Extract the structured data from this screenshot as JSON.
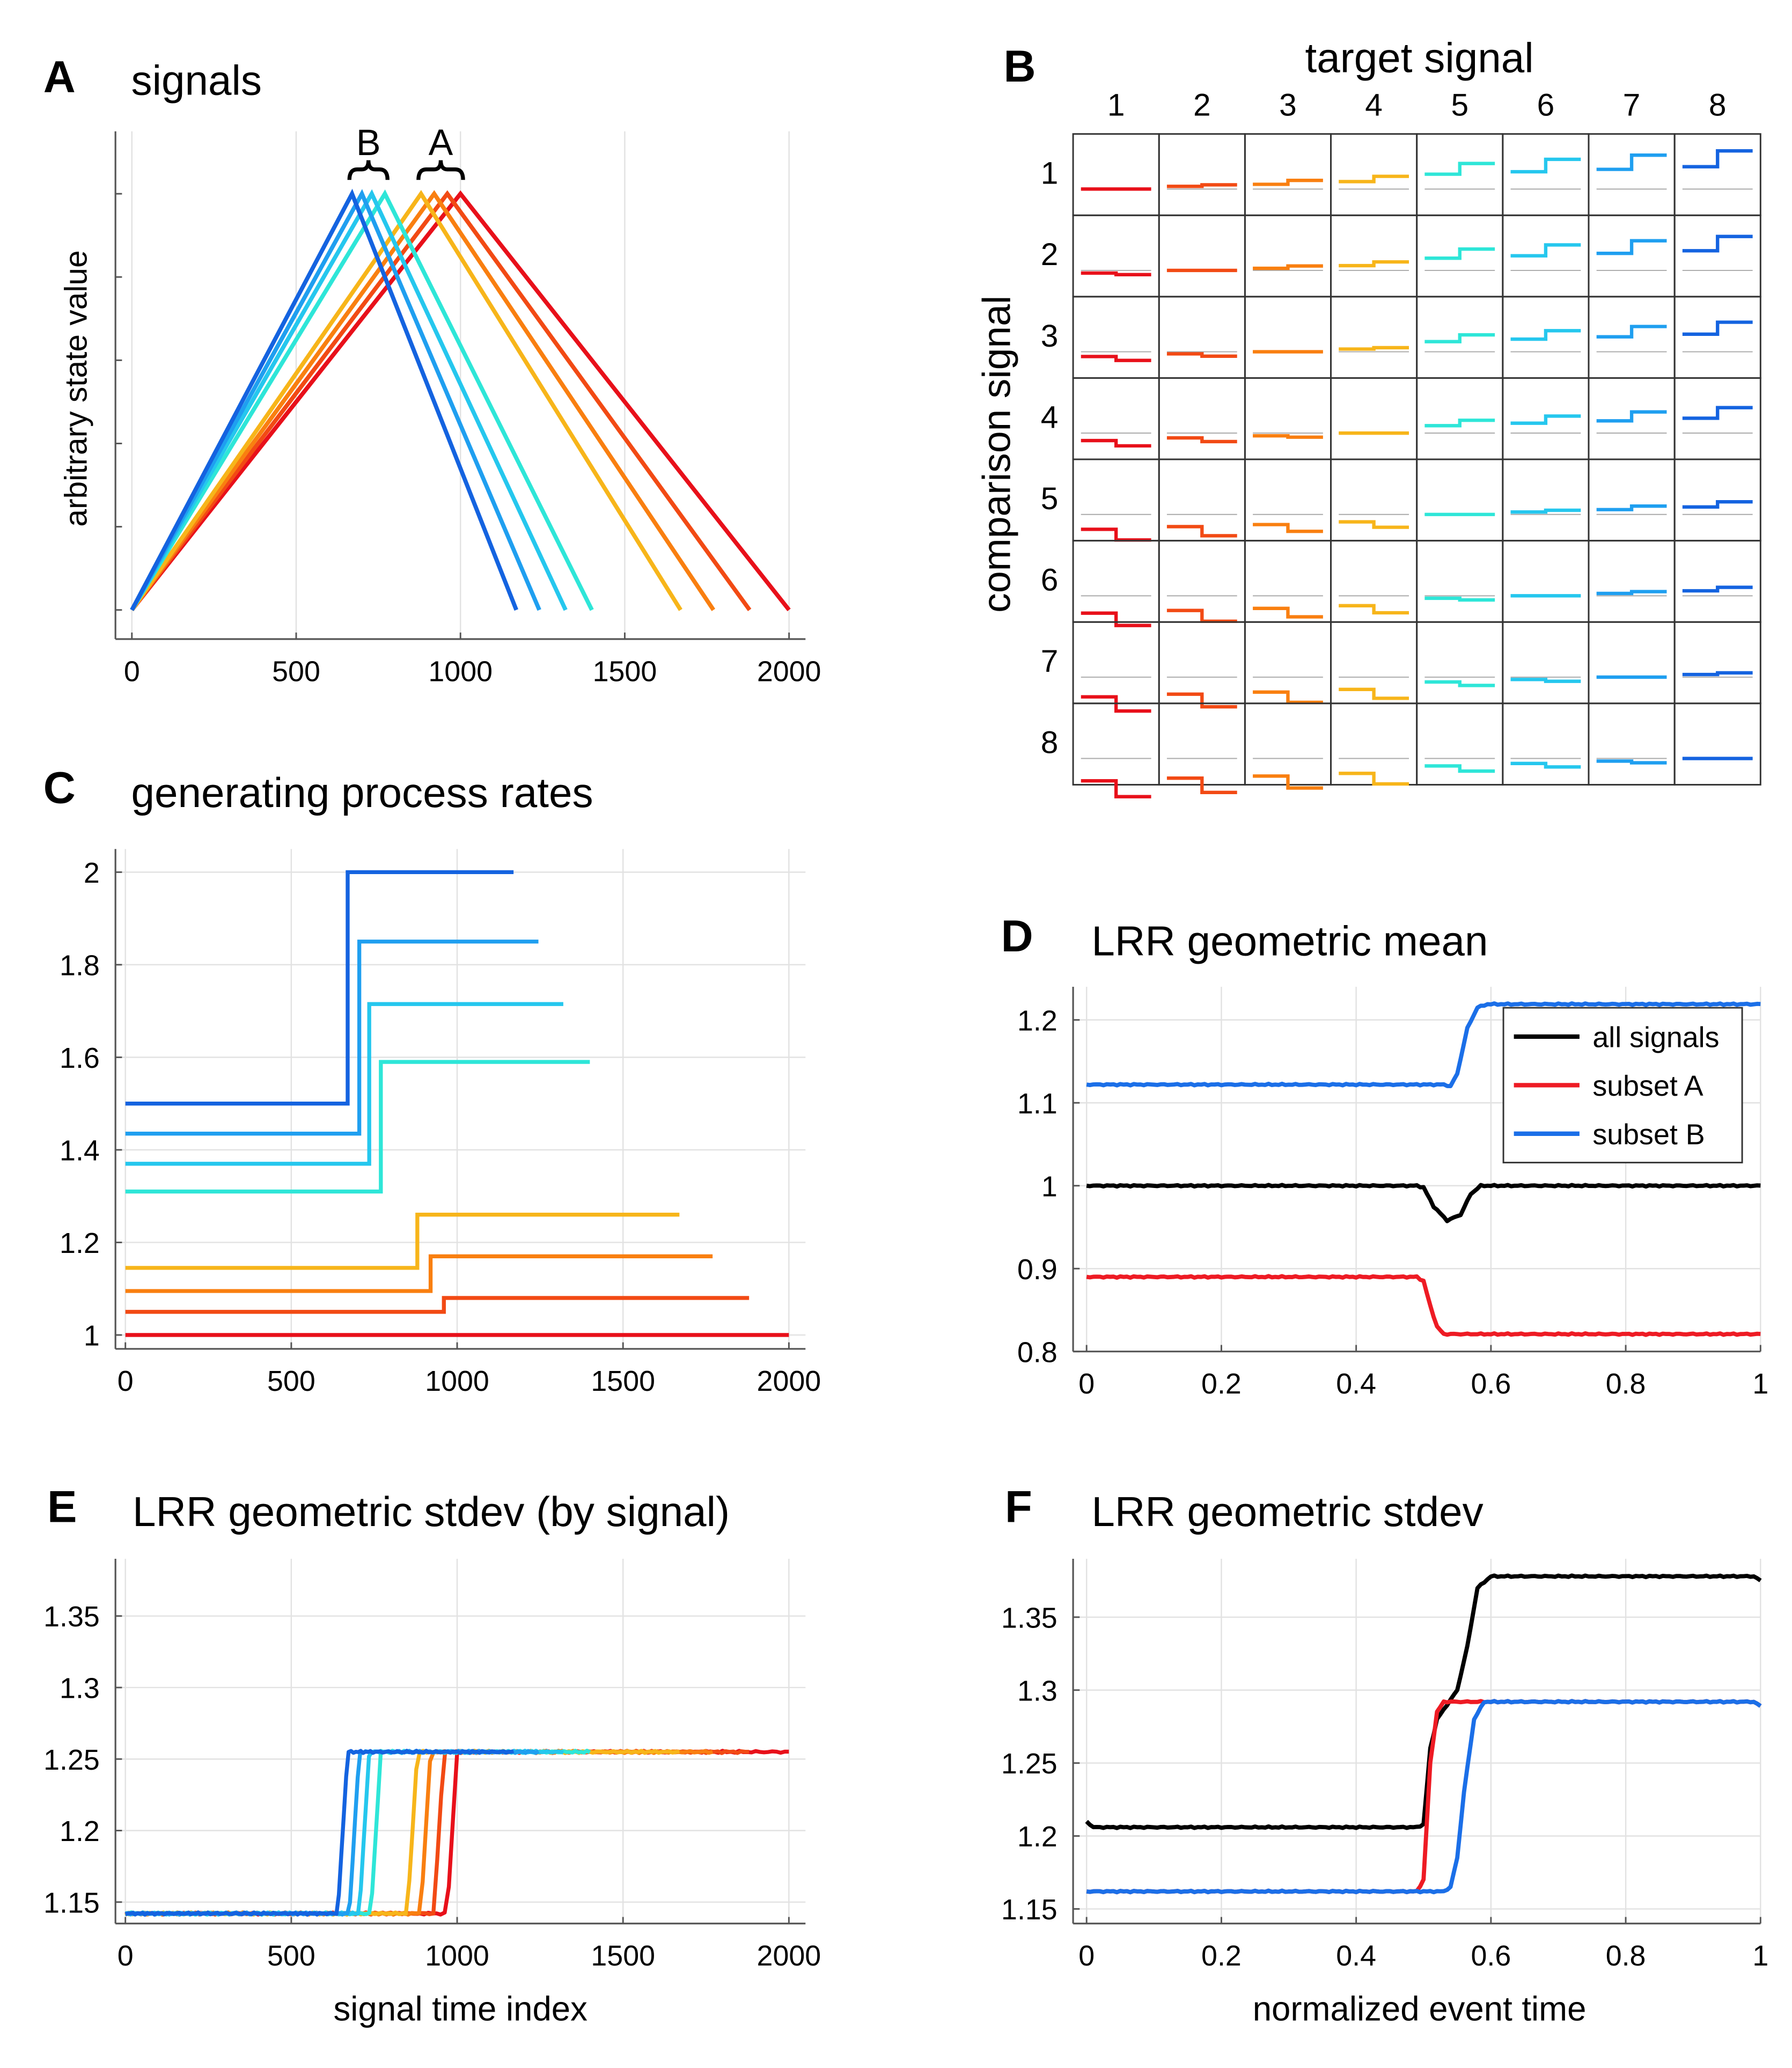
{
  "colors": {
    "signals": [
      "#e8101a",
      "#f24a14",
      "#f97f10",
      "#f7b51a",
      "#2ee6d8",
      "#25c7ee",
      "#1f9ff0",
      "#1463e0"
    ],
    "all": "#000000",
    "subsetA": "#ee1b24",
    "subsetB": "#1b6fe8"
  },
  "chart_data": [
    {
      "panel": "A",
      "type": "line",
      "title": "signals",
      "xlabel": "",
      "ylabel": "arbitrary state value",
      "xlim": [
        -50,
        2050
      ],
      "ylim": [
        -70,
        1150
      ],
      "xticks": [
        "0",
        "500",
        "1000",
        "1500",
        "2000"
      ],
      "grid": true,
      "annotations": [
        "B",
        "A"
      ],
      "series": [
        {
          "x": [
            0,
            1000,
            2000
          ],
          "y": [
            0,
            1000,
            0
          ]
        },
        {
          "x": [
            0,
            960,
            1880
          ],
          "y": [
            0,
            1000,
            0
          ]
        },
        {
          "x": [
            0,
            920,
            1770
          ],
          "y": [
            0,
            1000,
            0
          ]
        },
        {
          "x": [
            0,
            880,
            1670
          ],
          "y": [
            0,
            1000,
            0
          ]
        },
        {
          "x": [
            0,
            770,
            1400
          ],
          "y": [
            0,
            1000,
            0
          ]
        },
        {
          "x": [
            0,
            730,
            1320
          ],
          "y": [
            0,
            1000,
            0
          ]
        },
        {
          "x": [
            0,
            700,
            1240
          ],
          "y": [
            0,
            1000,
            0
          ]
        },
        {
          "x": [
            0,
            670,
            1170
          ],
          "y": [
            0,
            1000,
            0
          ]
        }
      ]
    },
    {
      "panel": "B",
      "type": "line",
      "title": "target signal",
      "ylabel": "comparison signal",
      "col_labels": [
        "1",
        "2",
        "3",
        "4",
        "5",
        "6",
        "7",
        "8"
      ],
      "row_labels": [
        "1",
        "2",
        "3",
        "4",
        "5",
        "6",
        "7",
        "8"
      ],
      "rates": [
        [
          1.0,
          1.0
        ],
        [
          1.05,
          1.08
        ],
        [
          1.09,
          1.17
        ],
        [
          1.145,
          1.26
        ],
        [
          1.31,
          1.59
        ],
        [
          1.37,
          1.715
        ],
        [
          1.43,
          1.85
        ],
        [
          1.5,
          2.0
        ]
      ]
    },
    {
      "panel": "C",
      "type": "line",
      "title": "generating process rates",
      "xlim": [
        -30,
        2050
      ],
      "ylim": [
        0.97,
        2.05
      ],
      "xticks": [
        "0",
        "500",
        "1000",
        "1500",
        "2000"
      ],
      "yticks": [
        "1",
        "1.2",
        "1.4",
        "1.6",
        "1.8",
        "2"
      ],
      "grid": true,
      "series": [
        {
          "change": 1000,
          "end": 2000,
          "y": [
            1.0,
            1.0
          ]
        },
        {
          "change": 960,
          "end": 1880,
          "y": [
            1.05,
            1.08
          ]
        },
        {
          "change": 920,
          "end": 1770,
          "y": [
            1.095,
            1.17
          ]
        },
        {
          "change": 880,
          "end": 1670,
          "y": [
            1.145,
            1.26
          ]
        },
        {
          "change": 770,
          "end": 1400,
          "y": [
            1.31,
            1.59
          ]
        },
        {
          "change": 735,
          "end": 1320,
          "y": [
            1.37,
            1.715
          ]
        },
        {
          "change": 705,
          "end": 1245,
          "y": [
            1.435,
            1.85
          ]
        },
        {
          "change": 670,
          "end": 1170,
          "y": [
            1.5,
            2.0
          ]
        }
      ]
    },
    {
      "panel": "D",
      "type": "line",
      "title": "LRR geometric mean",
      "xlim": [
        -0.02,
        1.0
      ],
      "ylim": [
        0.8,
        1.24
      ],
      "xticks": [
        "0",
        "0.2",
        "0.4",
        "0.6",
        "0.8",
        "1"
      ],
      "yticks": [
        "0.8",
        "0.9",
        "1",
        "1.1",
        "1.2"
      ],
      "grid": true,
      "legend": "top-right",
      "series": [
        {
          "name": "all signals",
          "x": [
            0,
            0.49,
            0.5,
            0.515,
            0.535,
            0.555,
            0.57,
            0.585,
            1.0
          ],
          "y": [
            1.0,
            1.0,
            0.998,
            0.975,
            0.958,
            0.965,
            0.99,
            1.0,
            1.0
          ]
        },
        {
          "name": "subset A",
          "x": [
            0,
            0.49,
            0.5,
            0.51,
            0.52,
            0.53,
            1.0
          ],
          "y": [
            0.89,
            0.89,
            0.885,
            0.855,
            0.83,
            0.821,
            0.821
          ]
        },
        {
          "name": "subset B",
          "x": [
            0,
            0.53,
            0.54,
            0.55,
            0.565,
            0.58,
            0.595,
            1.0
          ],
          "y": [
            1.122,
            1.122,
            1.12,
            1.135,
            1.19,
            1.215,
            1.219,
            1.219
          ]
        }
      ]
    },
    {
      "panel": "E",
      "type": "line",
      "title": "LRR geometric stdev (by signal)",
      "xlabel": "signal time index",
      "xlim": [
        -30,
        2050
      ],
      "ylim": [
        1.135,
        1.39
      ],
      "xticks": [
        "0",
        "500",
        "1000",
        "1500",
        "2000"
      ],
      "yticks": [
        "1.15",
        "1.2",
        "1.25",
        "1.3",
        "1.35"
      ],
      "grid": true,
      "series": [
        {
          "change": 1000,
          "end": 2000,
          "y": [
            1.142,
            1.255
          ]
        },
        {
          "change": 960,
          "end": 1880,
          "y": [
            1.142,
            1.255
          ]
        },
        {
          "change": 920,
          "end": 1770,
          "y": [
            1.142,
            1.255
          ]
        },
        {
          "change": 880,
          "end": 1670,
          "y": [
            1.142,
            1.255
          ]
        },
        {
          "change": 770,
          "end": 1400,
          "y": [
            1.142,
            1.255
          ]
        },
        {
          "change": 735,
          "end": 1320,
          "y": [
            1.142,
            1.255
          ]
        },
        {
          "change": 705,
          "end": 1245,
          "y": [
            1.142,
            1.255
          ]
        },
        {
          "change": 670,
          "end": 1170,
          "y": [
            1.142,
            1.255
          ]
        }
      ]
    },
    {
      "panel": "F",
      "type": "line",
      "title": "LRR geometric stdev",
      "xlabel": "normalized event time",
      "xlim": [
        -0.02,
        1.0
      ],
      "ylim": [
        1.14,
        1.39
      ],
      "xticks": [
        "0",
        "0.2",
        "0.4",
        "0.6",
        "0.8",
        "1"
      ],
      "yticks": [
        "1.15",
        "1.2",
        "1.25",
        "1.3",
        "1.35"
      ],
      "grid": true,
      "series": [
        {
          "name": "all signals",
          "x": [
            0,
            0.01,
            0.49,
            0.5,
            0.51,
            0.52,
            0.535,
            0.55,
            0.565,
            0.58,
            0.6,
            0.99,
            1.0
          ],
          "y": [
            1.21,
            1.206,
            1.206,
            1.208,
            1.26,
            1.28,
            1.29,
            1.3,
            1.33,
            1.37,
            1.378,
            1.378,
            1.375
          ]
        },
        {
          "name": "subset A",
          "x": [
            0,
            0.49,
            0.5,
            0.51,
            0.52,
            0.53,
            0.99,
            1.0
          ],
          "y": [
            1.162,
            1.162,
            1.17,
            1.25,
            1.285,
            1.292,
            1.292,
            1.289
          ]
        },
        {
          "name": "subset B",
          "x": [
            0,
            0.53,
            0.54,
            0.55,
            0.56,
            0.575,
            0.59,
            0.99,
            1.0
          ],
          "y": [
            1.162,
            1.162,
            1.165,
            1.185,
            1.23,
            1.28,
            1.292,
            1.292,
            1.289
          ]
        }
      ]
    }
  ],
  "panels": {
    "A": {
      "label": "A",
      "title": "signals"
    },
    "B": {
      "label": "B",
      "title": "target signal"
    },
    "C": {
      "label": "C",
      "title": "generating process rates"
    },
    "D": {
      "label": "D",
      "title": "LRR geometric mean"
    },
    "E": {
      "label": "E",
      "title": "LRR geometric stdev (by signal)"
    },
    "F": {
      "label": "F",
      "title": "LRR geometric stdev"
    }
  }
}
